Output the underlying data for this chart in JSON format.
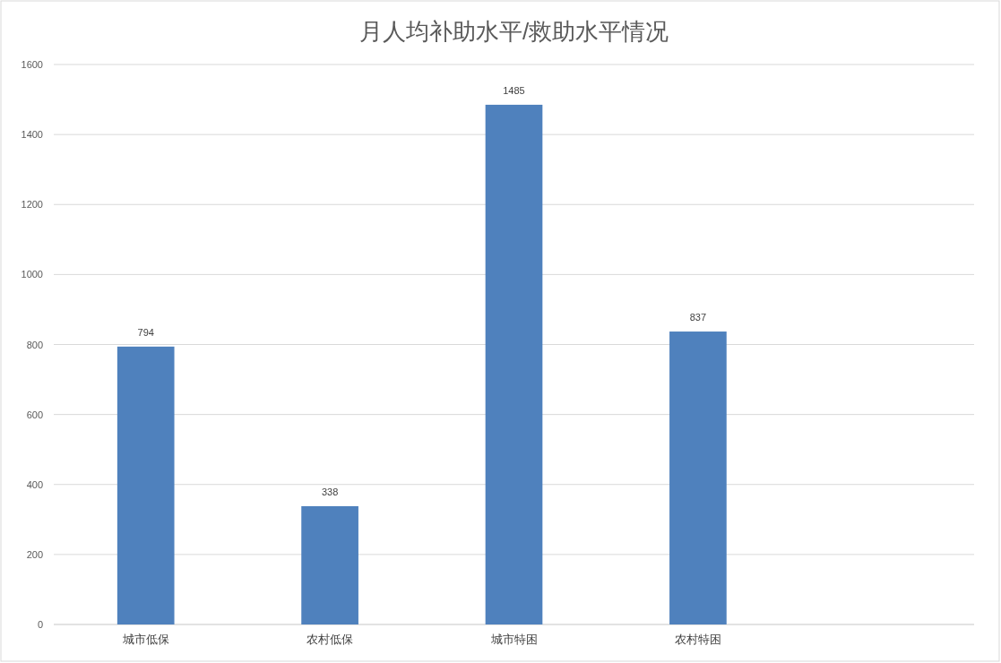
{
  "chart_data": {
    "type": "bar",
    "title": "月人均补助水平/救助水平情况",
    "categories": [
      "城市低保",
      "农村低保",
      "城市特困",
      "农村特困",
      null
    ],
    "values": [
      794,
      338,
      1485,
      837,
      null
    ],
    "color": "#4f81bd",
    "ylim": [
      0,
      1600
    ],
    "yticks": [
      0,
      200,
      400,
      600,
      800,
      1000,
      1200,
      1400,
      1600
    ],
    "grid": "y",
    "data_labels": true
  }
}
